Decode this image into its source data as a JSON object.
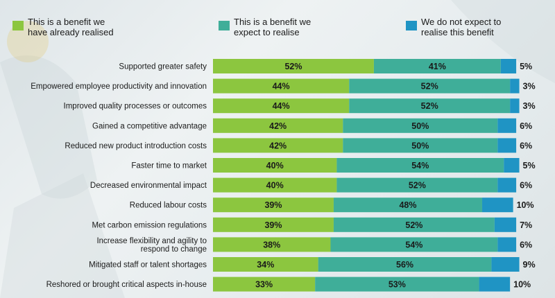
{
  "colors": {
    "realised": "#8cc63f",
    "expected": "#3fae99",
    "not_expected": "#1f94c4"
  },
  "legend": [
    {
      "key": "realised",
      "label_line1": "This is a benefit we",
      "label_line2": "have already realised"
    },
    {
      "key": "expected",
      "label_line1": "This is a benefit we",
      "label_line2": "expect to realise"
    },
    {
      "key": "not_expected",
      "label_line1": "We do not expect to",
      "label_line2": "realise this benefit"
    }
  ],
  "chart_data": {
    "type": "bar",
    "orientation": "horizontal-stacked",
    "unit": "%",
    "categories": [
      [
        "Supported greater safety"
      ],
      [
        "Empowered employee productivity and innovation"
      ],
      [
        "Improved quality processes or outcomes"
      ],
      [
        "Gained a competitive advantage"
      ],
      [
        "Reduced new product introduction costs"
      ],
      [
        "Faster time to market"
      ],
      [
        "Decreased environmental impact"
      ],
      [
        "Reduced labour costs"
      ],
      [
        "Met carbon emission regulations"
      ],
      [
        "Increase flexibility and agility to",
        "respond to change"
      ],
      [
        "Mitigated staff or talent shortages"
      ],
      [
        "Reshored or brought critical aspects in-house"
      ]
    ],
    "series": [
      {
        "name": "This is a benefit we have already realised",
        "key": "realised",
        "values": [
          52,
          44,
          44,
          42,
          42,
          40,
          40,
          39,
          39,
          38,
          34,
          33
        ]
      },
      {
        "name": "This is a benefit we expect to realise",
        "key": "expected",
        "values": [
          41,
          52,
          52,
          50,
          50,
          54,
          52,
          48,
          52,
          54,
          56,
          53
        ]
      },
      {
        "name": "We do not expect to realise this benefit",
        "key": "not_expected",
        "values": [
          5,
          3,
          3,
          6,
          6,
          5,
          6,
          10,
          7,
          6,
          9,
          10
        ]
      }
    ]
  }
}
